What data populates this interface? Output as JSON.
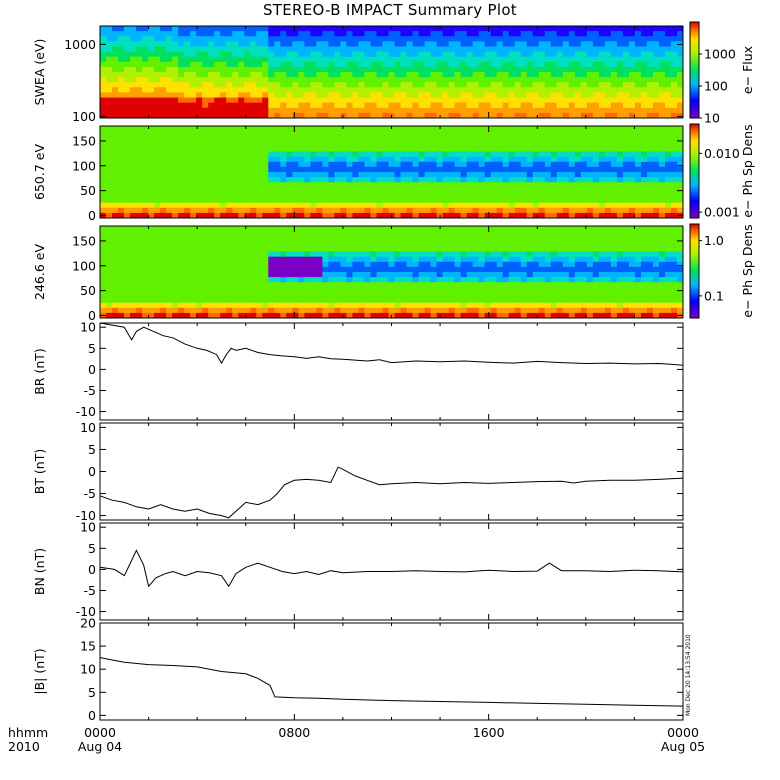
{
  "title": "STEREO-B IMPACT Summary Plot",
  "time_axis": {
    "corner_top": "hhmm",
    "corner_bottom": "2010",
    "ticks": [
      {
        "hour": 0,
        "top": "0000",
        "bottom": "Aug 04"
      },
      {
        "hour": 8,
        "top": "0800",
        "bottom": ""
      },
      {
        "hour": 16,
        "top": "1600",
        "bottom": ""
      },
      {
        "hour": 24,
        "top": "0000",
        "bottom": "Aug 05"
      }
    ]
  },
  "stamp": "Mon Dec 20 14:13:54 2010",
  "colorbars": [
    {
      "label": "e− Flux",
      "ticks": [
        "1000",
        "100",
        "10"
      ]
    },
    {
      "label": "e− Ph Sp Dens",
      "ticks": [
        "0.010",
        "0.001"
      ]
    },
    {
      "label": "e− Ph Sp Dens",
      "ticks": [
        "1.0",
        "0.1"
      ]
    }
  ],
  "chart_data": [
    {
      "type": "heatmap",
      "ylabel": "SWEA (eV)",
      "yscale": "log",
      "ylim": [
        95,
        1800
      ],
      "yticks": [
        "1000",
        "100"
      ],
      "xlim": [
        0,
        24
      ],
      "colorbar": "e− Flux",
      "description_regions": "high flux (red/orange) at low energy before 0700 UT; lower flux afterward"
    },
    {
      "type": "heatmap",
      "ylabel": "650.7 eV",
      "ylim": [
        -5,
        180
      ],
      "yticks": [
        "150",
        "100",
        "50",
        "0"
      ],
      "xlim": [
        0,
        24
      ],
      "colorbar": "e− Ph Sp Dens"
    },
    {
      "type": "heatmap",
      "ylabel": "246.6 eV",
      "ylim": [
        -5,
        180
      ],
      "yticks": [
        "150",
        "100",
        "50",
        "0"
      ],
      "xlim": [
        0,
        24
      ],
      "colorbar": "e− Ph Sp Dens"
    },
    {
      "type": "line",
      "ylabel": "BR (nT)",
      "ylim": [
        -12,
        11
      ],
      "yticks": [
        "10",
        "5",
        "0",
        "-5",
        "-10"
      ],
      "x": [
        0,
        0.5,
        1.0,
        1.3,
        1.5,
        1.8,
        2.2,
        2.6,
        3.0,
        3.5,
        4.0,
        4.4,
        4.8,
        5.0,
        5.2,
        5.4,
        5.6,
        6.0,
        6.5,
        7.0,
        7.5,
        8.0,
        8.5,
        9.0,
        9.5,
        10.0,
        10.5,
        11.0,
        11.5,
        12.0,
        13.0,
        14.0,
        15.0,
        16.0,
        17.0,
        18.0,
        19.0,
        20.0,
        21.0,
        22.0,
        23.0,
        23.5,
        24.0
      ],
      "y": [
        11,
        10.5,
        10,
        7,
        9,
        10,
        9,
        8,
        7.5,
        6,
        5,
        4.5,
        3.5,
        1.5,
        3.5,
        5,
        4.5,
        5,
        4,
        3.5,
        3.2,
        3.0,
        2.6,
        3.0,
        2.5,
        2.4,
        2.2,
        2.0,
        2.3,
        1.6,
        2.0,
        1.8,
        2.0,
        1.7,
        1.5,
        1.9,
        1.6,
        1.4,
        1.5,
        1.3,
        1.4,
        1.2,
        1.0
      ]
    },
    {
      "type": "line",
      "ylabel": "BT (nT)",
      "ylim": [
        -11,
        11
      ],
      "yticks": [
        "10",
        "5",
        "0",
        "-5",
        "-10"
      ],
      "x": [
        0,
        0.5,
        1.0,
        1.5,
        2.0,
        2.5,
        3.0,
        3.5,
        4.0,
        4.5,
        5.0,
        5.3,
        5.6,
        6.0,
        6.5,
        7.0,
        7.3,
        7.6,
        8.0,
        8.5,
        9.0,
        9.5,
        9.8,
        10.0,
        10.5,
        11.0,
        11.5,
        12.0,
        13.0,
        14.0,
        15.0,
        16.0,
        17.0,
        18.0,
        19.0,
        19.5,
        20.0,
        21.0,
        22.0,
        23.0,
        24.0
      ],
      "y": [
        -5.5,
        -6.5,
        -7.0,
        -8.0,
        -8.5,
        -7.5,
        -8.5,
        -9.0,
        -8.5,
        -9.5,
        -10.0,
        -10.5,
        -9.0,
        -7.0,
        -7.5,
        -6.5,
        -5.0,
        -3.0,
        -2.0,
        -1.8,
        -2.0,
        -2.5,
        1.0,
        0.5,
        -1.0,
        -2.0,
        -3.0,
        -2.8,
        -2.5,
        -2.8,
        -2.5,
        -2.7,
        -2.5,
        -2.3,
        -2.2,
        -2.6,
        -2.2,
        -2.0,
        -2.0,
        -1.8,
        -1.5
      ]
    },
    {
      "type": "line",
      "ylabel": "BN (nT)",
      "ylim": [
        -12,
        11
      ],
      "yticks": [
        "10",
        "5",
        "0",
        "-5",
        "-10"
      ],
      "x": [
        0,
        0.6,
        1.0,
        1.5,
        1.8,
        2.0,
        2.3,
        2.7,
        3.0,
        3.5,
        4.0,
        4.5,
        5.0,
        5.3,
        5.6,
        6.0,
        6.5,
        7.0,
        7.5,
        8.0,
        8.5,
        9.0,
        9.5,
        10.0,
        11.0,
        12.0,
        13.0,
        14.0,
        15.0,
        16.0,
        17.0,
        18.0,
        18.5,
        19.0,
        20.0,
        21.0,
        22.0,
        23.0,
        24.0
      ],
      "y": [
        0.5,
        0,
        -1.5,
        4.5,
        1.0,
        -4.0,
        -2.0,
        -1.0,
        -0.5,
        -1.5,
        -0.5,
        -0.8,
        -1.5,
        -4.0,
        -1.0,
        0.5,
        1.5,
        0.5,
        -0.5,
        -1.0,
        -0.5,
        -1.2,
        -0.3,
        -0.8,
        -0.5,
        -0.5,
        -0.3,
        -0.5,
        -0.6,
        -0.2,
        -0.5,
        -0.4,
        1.5,
        -0.3,
        -0.3,
        -0.5,
        -0.2,
        -0.3,
        -0.6
      ]
    },
    {
      "type": "line",
      "ylabel": "|B| (nT)",
      "ylim": [
        -1,
        20
      ],
      "yticks": [
        "20",
        "15",
        "10",
        "5",
        "0"
      ],
      "x": [
        0,
        1.0,
        2.0,
        3.0,
        4.0,
        5.0,
        6.0,
        6.5,
        7.0,
        7.2,
        8.0,
        9.0,
        10.0,
        12.0,
        14.0,
        16.0,
        18.0,
        20.0,
        22.0,
        24.0
      ],
      "y": [
        12.5,
        11.5,
        11.0,
        10.8,
        10.5,
        9.5,
        9.0,
        8.0,
        6.5,
        4.0,
        3.8,
        3.7,
        3.5,
        3.2,
        3.0,
        2.8,
        2.6,
        2.4,
        2.2,
        2.0
      ]
    }
  ]
}
